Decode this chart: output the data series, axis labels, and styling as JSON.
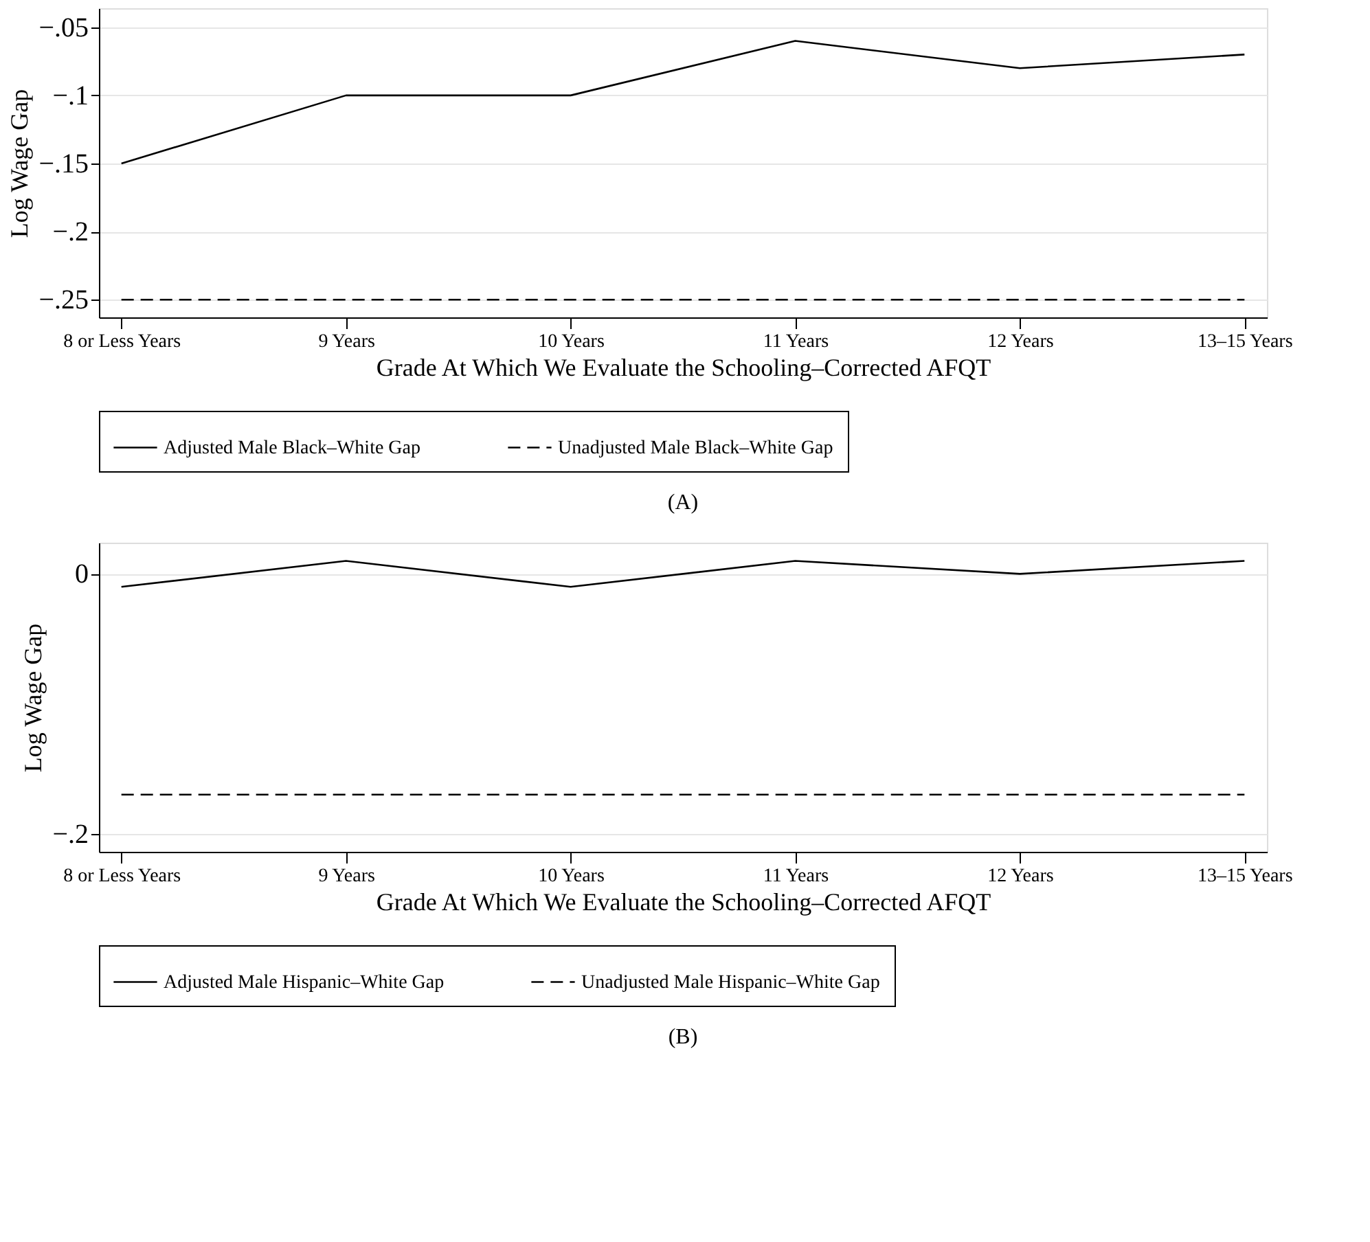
{
  "chart_data": [
    {
      "type": "line",
      "categories": [
        "8 or Less Years",
        "9 Years",
        "10 Years",
        "11 Years",
        "12 Years",
        "13–15 Years"
      ],
      "xlabel": "Grade At Which We Evaluate the Schooling–Corrected AFQT",
      "ylabel": "Log Wage Gap",
      "ylim": [
        -0.263,
        -0.036
      ],
      "yticks": [
        {
          "value": -0.05,
          "label": "−.05"
        },
        {
          "value": -0.1,
          "label": "−.1"
        },
        {
          "value": -0.15,
          "label": "−.15"
        },
        {
          "value": -0.2,
          "label": "−.2"
        },
        {
          "value": -0.25,
          "label": "−.25"
        }
      ],
      "grid": "y",
      "legend": "bottom",
      "annotations": [
        "(A)"
      ],
      "series": [
        {
          "name": "Adjusted Male Black–White Gap",
          "color": "#000000",
          "line_style": "solid",
          "values": [
            -0.15,
            -0.1,
            -0.1,
            -0.06,
            -0.08,
            -0.07
          ]
        },
        {
          "name": "Unadjusted Male Black–White Gap",
          "color": "#000000",
          "line_style": "dashed",
          "values": [
            -0.25,
            -0.25,
            -0.25,
            -0.25,
            -0.25,
            -0.25
          ]
        }
      ]
    },
    {
      "type": "line",
      "categories": [
        "8 or Less Years",
        "9 Years",
        "10 Years",
        "11 Years",
        "12 Years",
        "13–15 Years"
      ],
      "xlabel": "Grade At Which We Evaluate the Schooling–Corrected AFQT",
      "ylabel": "Log Wage Gap",
      "ylim": [
        -0.214,
        0.024
      ],
      "yticks": [
        0,
        {
          "value": -0.2,
          "label": "−.2"
        }
      ],
      "grid": "y",
      "legend": "bottom",
      "annotations": [
        "(B)"
      ],
      "series": [
        {
          "name": "Adjusted Male Hispanic–White Gap",
          "color": "#000000",
          "line_style": "solid",
          "values": [
            -0.01,
            0.01,
            -0.01,
            0.01,
            0,
            0.01
          ]
        },
        {
          "name": "Unadjusted Male Hispanic–White Gap",
          "color": "#000000",
          "line_style": "dashed",
          "values": [
            -0.17,
            -0.17,
            -0.17,
            -0.17,
            -0.17,
            -0.17
          ]
        }
      ]
    }
  ]
}
